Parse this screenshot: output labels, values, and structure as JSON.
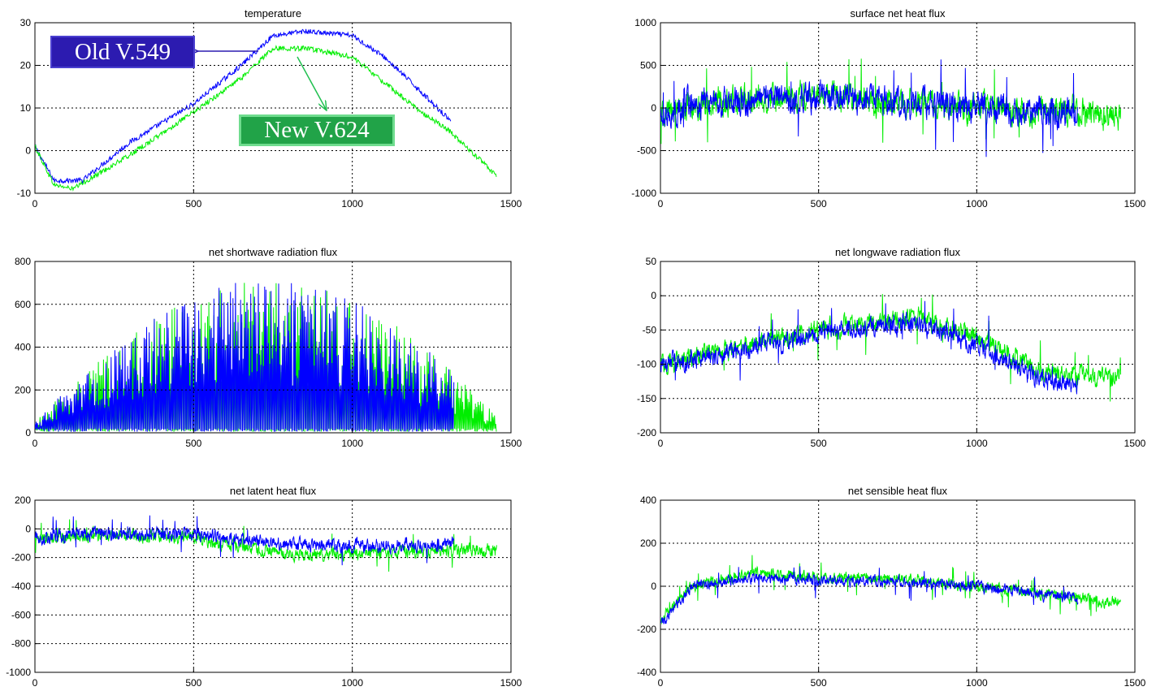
{
  "colors": {
    "old": "#0000ff",
    "new": "#00ee00",
    "old_badge": "#2c1bb0",
    "new_badge": "#21a348"
  },
  "annotations": {
    "old_label": "Old V.549",
    "new_label": "New V.624"
  },
  "chart_data": [
    {
      "id": "temperature",
      "type": "line",
      "title": "temperature",
      "xlim": [
        0,
        1500
      ],
      "ylim": [
        -10,
        30
      ],
      "xticks": [
        0,
        500,
        1000,
        1500
      ],
      "yticks": [
        -10,
        0,
        10,
        20,
        30
      ],
      "grid": true,
      "series": [
        {
          "key": "old",
          "points": [
            [
              0,
              1
            ],
            [
              60,
              -7
            ],
            [
              150,
              -7
            ],
            [
              300,
              2
            ],
            [
              500,
              11
            ],
            [
              650,
              20
            ],
            [
              750,
              27
            ],
            [
              850,
              28
            ],
            [
              1000,
              27
            ],
            [
              1100,
              22
            ],
            [
              1200,
              15
            ],
            [
              1310,
              7
            ]
          ]
        },
        {
          "key": "new",
          "points": [
            [
              0,
              1
            ],
            [
              60,
              -8
            ],
            [
              120,
              -9
            ],
            [
              300,
              -1
            ],
            [
              500,
              9
            ],
            [
              650,
              17
            ],
            [
              750,
              24
            ],
            [
              850,
              24
            ],
            [
              1000,
              22
            ],
            [
              1100,
              16
            ],
            [
              1200,
              10
            ],
            [
              1300,
              5
            ],
            [
              1400,
              -2
            ],
            [
              1455,
              -6
            ]
          ]
        }
      ]
    },
    {
      "id": "surface-net-heat-flux",
      "type": "line",
      "title": "surface net heat flux",
      "xlim": [
        0,
        1500
      ],
      "ylim": [
        -1000,
        1000
      ],
      "xticks": [
        0,
        500,
        1000,
        1500
      ],
      "yticks": [
        -1000,
        -500,
        0,
        500,
        1000
      ],
      "grid": true,
      "series": [
        {
          "key": "new",
          "points": [
            [
              0,
              -100
            ],
            [
              100,
              50
            ],
            [
              300,
              100
            ],
            [
              500,
              150
            ],
            [
              800,
              50
            ],
            [
              1000,
              0
            ],
            [
              1200,
              -50
            ],
            [
              1320,
              -50
            ],
            [
              1455,
              -100
            ]
          ]
        },
        {
          "key": "old",
          "points": [
            [
              0,
              -100
            ],
            [
              100,
              50
            ],
            [
              300,
              100
            ],
            [
              500,
              150
            ],
            [
              800,
              50
            ],
            [
              1000,
              0
            ],
            [
              1200,
              -50
            ],
            [
              1320,
              -50
            ]
          ]
        }
      ]
    },
    {
      "id": "net-shortwave-radiation-flux",
      "type": "line",
      "title": "net shortwave radiation flux",
      "xlim": [
        0,
        1500
      ],
      "ylim": [
        0,
        800
      ],
      "xticks": [
        0,
        500,
        1000,
        1500
      ],
      "yticks": [
        0,
        200,
        400,
        600,
        800
      ],
      "grid": true,
      "series": [
        {
          "key": "new",
          "points": [
            [
              0,
              20
            ],
            [
              200,
              20
            ],
            [
              500,
              20
            ],
            [
              800,
              20
            ],
            [
              1100,
              20
            ],
            [
              1455,
              20
            ]
          ]
        },
        {
          "key": "old",
          "points": [
            [
              0,
              20
            ],
            [
              200,
              20
            ],
            [
              500,
              20
            ],
            [
              800,
              20
            ],
            [
              1100,
              20
            ],
            [
              1320,
              20
            ]
          ]
        }
      ]
    },
    {
      "id": "net-longwave-radiation-flux",
      "type": "line",
      "title": "net longwave radiation flux",
      "xlim": [
        0,
        1500
      ],
      "ylim": [
        -200,
        50
      ],
      "xticks": [
        0,
        500,
        1000,
        1500
      ],
      "yticks": [
        -200,
        -150,
        -100,
        -50,
        0,
        50
      ],
      "grid": true,
      "series": [
        {
          "key": "new",
          "points": [
            [
              0,
              -100
            ],
            [
              200,
              -80
            ],
            [
              500,
              -50
            ],
            [
              800,
              -30
            ],
            [
              1000,
              -60
            ],
            [
              1200,
              -110
            ],
            [
              1455,
              -120
            ]
          ]
        },
        {
          "key": "old",
          "points": [
            [
              0,
              -100
            ],
            [
              200,
              -85
            ],
            [
              500,
              -55
            ],
            [
              800,
              -40
            ],
            [
              1000,
              -70
            ],
            [
              1200,
              -125
            ],
            [
              1320,
              -130
            ]
          ]
        }
      ]
    },
    {
      "id": "net-latent-heat-flux",
      "type": "line",
      "title": "net latent heat flux",
      "xlim": [
        0,
        1500
      ],
      "ylim": [
        -1000,
        200
      ],
      "xticks": [
        0,
        500,
        1000,
        1500
      ],
      "yticks": [
        -1000,
        -800,
        -600,
        -400,
        -200,
        0,
        200
      ],
      "grid": true,
      "series": [
        {
          "key": "new",
          "points": [
            [
              0,
              -80
            ],
            [
              200,
              -40
            ],
            [
              500,
              -60
            ],
            [
              800,
              -180
            ],
            [
              1000,
              -180
            ],
            [
              1200,
              -160
            ],
            [
              1455,
              -150
            ]
          ]
        },
        {
          "key": "old",
          "points": [
            [
              0,
              -60
            ],
            [
              200,
              -30
            ],
            [
              500,
              -40
            ],
            [
              800,
              -110
            ],
            [
              1000,
              -120
            ],
            [
              1200,
              -110
            ],
            [
              1320,
              -100
            ]
          ]
        }
      ]
    },
    {
      "id": "net-sensible-heat-flux",
      "type": "line",
      "title": "net sensible heat flux",
      "xlim": [
        0,
        1500
      ],
      "ylim": [
        -400,
        400
      ],
      "xticks": [
        0,
        500,
        1000,
        1500
      ],
      "yticks": [
        -400,
        -200,
        0,
        200,
        400
      ],
      "grid": true,
      "series": [
        {
          "key": "new",
          "points": [
            [
              0,
              -150
            ],
            [
              100,
              0
            ],
            [
              300,
              60
            ],
            [
              500,
              40
            ],
            [
              800,
              30
            ],
            [
              1000,
              0
            ],
            [
              1200,
              -30
            ],
            [
              1455,
              -80
            ]
          ]
        },
        {
          "key": "old",
          "points": [
            [
              0,
              -180
            ],
            [
              100,
              0
            ],
            [
              300,
              40
            ],
            [
              500,
              30
            ],
            [
              800,
              20
            ],
            [
              1000,
              0
            ],
            [
              1200,
              -40
            ],
            [
              1320,
              -60
            ]
          ]
        }
      ]
    }
  ]
}
